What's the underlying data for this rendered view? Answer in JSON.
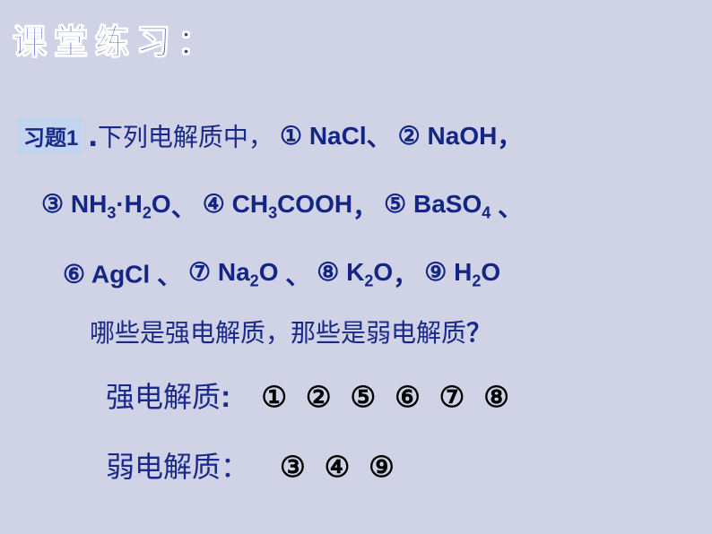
{
  "title": "课堂练习：",
  "exerciseLabel": "习题1",
  "intro": "下列电解质中，",
  "items": [
    {
      "num": "①",
      "formula_html": "NaCl"
    },
    {
      "num": "②",
      "formula_html": "NaOH"
    },
    {
      "num": "③",
      "formula_html": "NH<sub>3</sub>·H<sub>2</sub>O"
    },
    {
      "num": "④",
      "formula_html": "CH<sub>3</sub>COOH"
    },
    {
      "num": "⑤",
      "formula_html": "BaSO<sub>4</sub>"
    },
    {
      "num": "⑥",
      "formula_html": "AgCl"
    },
    {
      "num": "⑦",
      "formula_html": "Na<sub>2</sub>O"
    },
    {
      "num": "⑧",
      "formula_html": "K<sub>2</sub>O"
    },
    {
      "num": "⑨",
      "formula_html": "H<sub>2</sub>O"
    }
  ],
  "sep_dian": "、",
  "sep_comma": "，",
  "question": "哪些是强电解质，那些是弱电解质",
  "questionMark": "？",
  "strongLabel": "强电解质",
  "weakLabel": "弱电解质：",
  "strongAnswer": "① ② ⑤ ⑥ ⑦ ⑧",
  "weakAnswer": "③ ④ ⑨",
  "colors": {
    "background": "#d0d2e5",
    "primary_text": "#1a2a8a",
    "chem_text": "#142685",
    "answer_text": "#000000",
    "label_bg": "#c2d4ee"
  }
}
